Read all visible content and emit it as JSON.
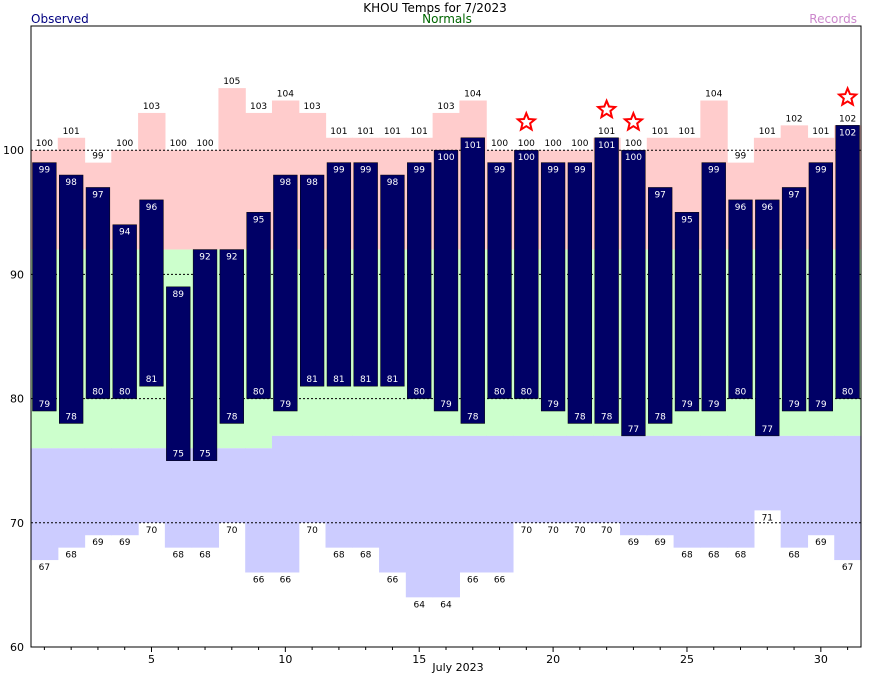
{
  "header": {
    "title": "KHOU Temps for 7/2023",
    "legend_observed": "Observed",
    "legend_normals": "Normals",
    "legend_records": "Records"
  },
  "colors": {
    "observed": "#000066",
    "observed_legend": "#000080",
    "normals_legend": "#006600",
    "records_legend": "#cc88cc",
    "record_high_band": "#ffcccc",
    "normal_band": "#ccffcc",
    "record_low_band": "#ccccff",
    "record_star": "#ff0000"
  },
  "chart_data": {
    "type": "bar",
    "title": "KHOU Temps for 7/2023",
    "xlabel": "July 2023",
    "ylabel": "",
    "x": [
      1,
      2,
      3,
      4,
      5,
      6,
      7,
      8,
      9,
      10,
      11,
      12,
      13,
      14,
      15,
      16,
      17,
      18,
      19,
      20,
      21,
      22,
      23,
      24,
      25,
      26,
      27,
      28,
      29,
      30,
      31
    ],
    "xticks": [
      5,
      10,
      15,
      20,
      25,
      30
    ],
    "ylim": [
      60,
      110
    ],
    "yticks": [
      60,
      70,
      80,
      90,
      100
    ],
    "grid": "dashed at 70, 80, 90, 100",
    "series": [
      {
        "name": "Observed",
        "kind": "high",
        "values": [
          99,
          98,
          97,
          94,
          96,
          89,
          92,
          92,
          95,
          98,
          98,
          99,
          99,
          98,
          99,
          100,
          101,
          99,
          100,
          99,
          99,
          101,
          100,
          97,
          95,
          99,
          96,
          96,
          97,
          99,
          102
        ]
      },
      {
        "name": "Observed",
        "kind": "low",
        "values": [
          79,
          78,
          80,
          80,
          81,
          75,
          75,
          78,
          80,
          79,
          81,
          81,
          81,
          81,
          80,
          79,
          78,
          80,
          80,
          79,
          78,
          78,
          77,
          78,
          79,
          79,
          80,
          77,
          79,
          79,
          80
        ]
      },
      {
        "name": "Normals",
        "kind": "high",
        "values": [
          92,
          92,
          92,
          92,
          92,
          92,
          92,
          92,
          92,
          92,
          92,
          92,
          92,
          92,
          92,
          92,
          92,
          92,
          92,
          92,
          92,
          92,
          92,
          92,
          92,
          92,
          92,
          92,
          92,
          92,
          92
        ]
      },
      {
        "name": "Normals",
        "kind": "low",
        "values": [
          76,
          76,
          76,
          76,
          76,
          76,
          76,
          76,
          76,
          77,
          77,
          77,
          77,
          77,
          77,
          77,
          77,
          77,
          77,
          77,
          77,
          77,
          77,
          77,
          77,
          77,
          77,
          77,
          77,
          77,
          77
        ]
      },
      {
        "name": "Records",
        "kind": "high",
        "values": [
          100,
          101,
          99,
          100,
          103,
          100,
          100,
          105,
          103,
          104,
          103,
          101,
          101,
          101,
          101,
          103,
          104,
          100,
          100,
          100,
          100,
          101,
          100,
          101,
          101,
          104,
          99,
          101,
          102,
          101,
          102
        ]
      },
      {
        "name": "Records",
        "kind": "low",
        "values": [
          67,
          68,
          69,
          69,
          70,
          68,
          68,
          70,
          66,
          66,
          70,
          68,
          68,
          66,
          64,
          64,
          66,
          66,
          70,
          70,
          70,
          70,
          69,
          69,
          68,
          68,
          68,
          71,
          68,
          69,
          67
        ]
      }
    ],
    "record_high_set_days": [
      19,
      22,
      23,
      31
    ]
  }
}
